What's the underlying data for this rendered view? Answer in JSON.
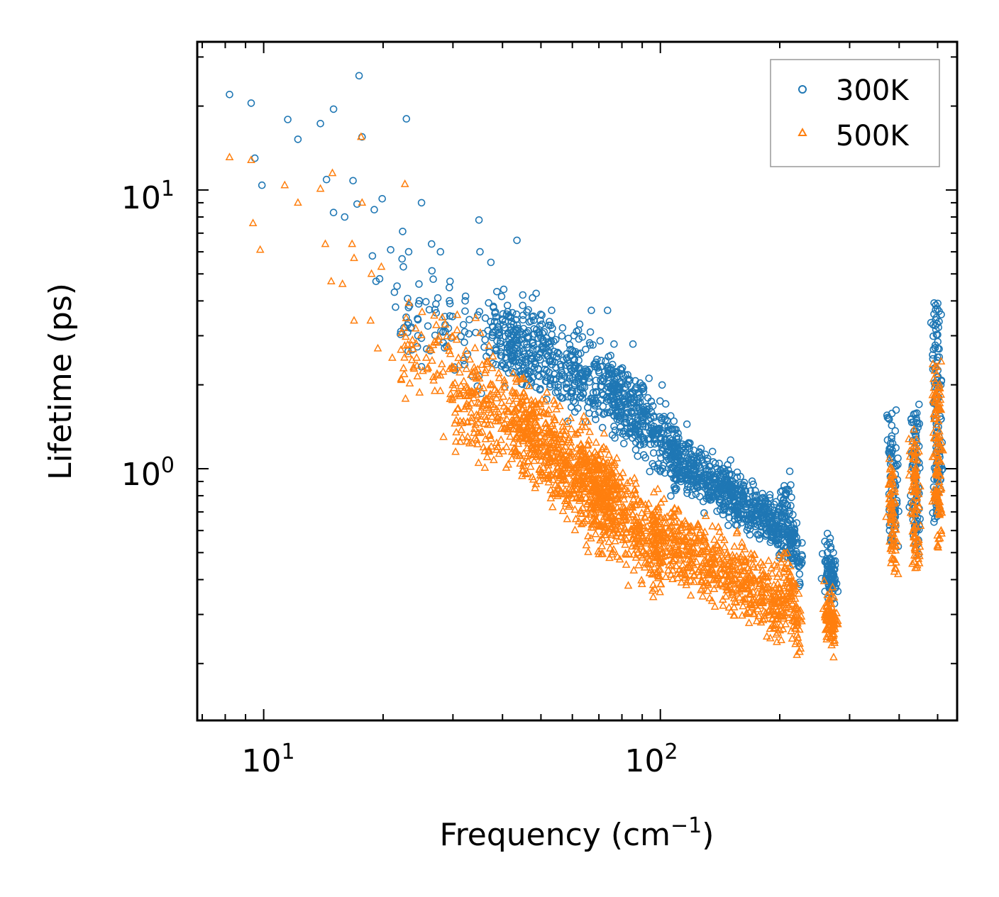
{
  "chart_data": {
    "type": "scatter",
    "title": "",
    "xlabel": "Frequency (cm",
    "xlabel_sup": "−1",
    "xlabel_suffix": ")",
    "ylabel": "Lifetime (ps)",
    "xscale": "log",
    "yscale": "log",
    "xlim": [
      6.8,
      560
    ],
    "ylim": [
      0.125,
      34
    ],
    "x_ticks": [
      {
        "base": "10",
        "exp": "1",
        "value": 10
      },
      {
        "base": "10",
        "exp": "2",
        "value": 100
      }
    ],
    "y_ticks": [
      {
        "base": "10",
        "exp": "0",
        "value": 1
      },
      {
        "base": "10",
        "exp": "1",
        "value": 10
      }
    ],
    "legend_position": "top-right",
    "series": [
      {
        "name": "300K",
        "color": "#1f77b4",
        "marker": "circle-open",
        "points": [
          [
            8.2,
            22.0
          ],
          [
            9.3,
            20.5
          ],
          [
            9.5,
            13.0
          ],
          [
            9.9,
            10.4
          ],
          [
            11.5,
            17.9
          ],
          [
            12.2,
            15.2
          ],
          [
            13.9,
            17.3
          ],
          [
            14.4,
            10.9
          ],
          [
            15.0,
            19.5
          ],
          [
            15.0,
            8.3
          ],
          [
            16.0,
            8.0
          ],
          [
            16.8,
            10.8
          ],
          [
            17.2,
            8.9
          ],
          [
            17.4,
            25.7
          ],
          [
            17.7,
            15.5
          ],
          [
            18.8,
            5.8
          ],
          [
            19.0,
            8.5
          ],
          [
            19.2,
            4.7
          ],
          [
            19.6,
            4.8
          ],
          [
            19.9,
            9.3
          ],
          [
            20.9,
            6.1
          ],
          [
            21.5,
            3.8
          ],
          [
            22.4,
            7.1
          ],
          [
            22.5,
            5.3
          ],
          [
            22.9,
            18.0
          ],
          [
            23.2,
            6.0
          ],
          [
            25.0,
            9.0
          ],
          [
            26.5,
            6.4
          ],
          [
            27.9,
            6.0
          ],
          [
            29.5,
            4.7
          ],
          [
            32.2,
            4.0
          ],
          [
            34.9,
            7.8
          ],
          [
            35.1,
            6.0
          ],
          [
            37.4,
            5.5
          ],
          [
            40.3,
            4.4
          ],
          [
            43.5,
            6.6
          ],
          [
            45.0,
            4.2
          ],
          [
            47.6,
            4.1
          ],
          [
            53.2,
            3.7
          ],
          [
            56.7,
            3.2
          ],
          [
            62.6,
            3.3
          ],
          [
            67.0,
            3.7
          ],
          [
            73.6,
            3.7
          ],
          [
            76.4,
            2.8
          ],
          [
            85.3,
            2.8
          ]
        ],
        "clusters": [
          {
            "x": [
              22,
              50
            ],
            "y": [
              3.6,
              2.6
            ],
            "n": 140,
            "spread": 1.22
          },
          {
            "x": [
              38,
              78
            ],
            "y": [
              3.0,
              1.85
            ],
            "n": 420,
            "spread": 1.18
          },
          {
            "x": [
              75,
              110
            ],
            "y": [
              1.9,
              1.15
            ],
            "n": 320,
            "spread": 1.16
          },
          {
            "x": [
              108,
              205
            ],
            "y": [
              1.1,
              0.6
            ],
            "n": 600,
            "spread": 1.12
          },
          {
            "x": [
              205,
              215
            ],
            "y": [
              0.85,
              0.48
            ],
            "n": 70,
            "spread": 1.1
          },
          {
            "x": [
              215,
              225
            ],
            "y": [
              0.62,
              0.42
            ],
            "n": 50,
            "spread": 1.1
          },
          {
            "x": [
              260,
              275
            ],
            "y": [
              0.48,
              0.4
            ],
            "n": 90,
            "spread": 1.12
          },
          {
            "x": [
              383,
              388
            ],
            "y": [
              1.6,
              0.55
            ],
            "n": 80,
            "spread": 1.08
          },
          {
            "x": [
              437,
              442
            ],
            "y": [
              1.7,
              0.55
            ],
            "n": 90,
            "spread": 1.08
          },
          {
            "x": [
              497,
              502
            ],
            "y": [
              3.8,
              0.7
            ],
            "n": 120,
            "spread": 1.08
          }
        ]
      },
      {
        "name": "500K",
        "color": "#ff7f0e",
        "marker": "triangle-open",
        "points": [
          [
            8.2,
            13.1
          ],
          [
            9.3,
            12.8
          ],
          [
            9.4,
            7.6
          ],
          [
            9.8,
            6.1
          ],
          [
            11.3,
            10.4
          ],
          [
            12.2,
            9.0
          ],
          [
            13.9,
            10.1
          ],
          [
            14.3,
            6.4
          ],
          [
            14.8,
            4.7
          ],
          [
            14.9,
            11.5
          ],
          [
            15.8,
            4.6
          ],
          [
            16.7,
            6.4
          ],
          [
            16.9,
            5.7
          ],
          [
            16.9,
            3.4
          ],
          [
            17.6,
            15.5
          ],
          [
            17.7,
            9.0
          ],
          [
            18.6,
            3.4
          ],
          [
            18.7,
            5.0
          ],
          [
            19.4,
            2.7
          ],
          [
            19.8,
            5.3
          ],
          [
            21.1,
            2.5
          ],
          [
            22.2,
            2.1
          ],
          [
            22.7,
            10.5
          ],
          [
            24.3,
            2.5
          ],
          [
            25.7,
            2.5
          ],
          [
            27.0,
            1.9
          ],
          [
            28.4,
            1.3
          ],
          [
            29.9,
            1.8
          ],
          [
            32.7,
            1.3
          ],
          [
            36.6,
            1.1
          ]
        ],
        "clusters": [
          {
            "x": [
              22,
              40
            ],
            "y": [
              2.9,
              1.9
            ],
            "n": 120,
            "spread": 1.22
          },
          {
            "x": [
              30,
              60
            ],
            "y": [
              1.8,
              1.1
            ],
            "n": 260,
            "spread": 1.22
          },
          {
            "x": [
              42,
              78
            ],
            "y": [
              1.6,
              0.65
            ],
            "n": 480,
            "spread": 1.22
          },
          {
            "x": [
              62,
              100
            ],
            "y": [
              1.1,
              0.5
            ],
            "n": 420,
            "spread": 1.2
          },
          {
            "x": [
              95,
              205
            ],
            "y": [
              0.6,
              0.32
            ],
            "n": 620,
            "spread": 1.16
          },
          {
            "x": [
              205,
              225
            ],
            "y": [
              0.45,
              0.26
            ],
            "n": 90,
            "spread": 1.14
          },
          {
            "x": [
              262,
              275
            ],
            "y": [
              0.32,
              0.26
            ],
            "n": 90,
            "spread": 1.12
          },
          {
            "x": [
              383,
              388
            ],
            "y": [
              1.0,
              0.45
            ],
            "n": 80,
            "spread": 1.08
          },
          {
            "x": [
              437,
              442
            ],
            "y": [
              1.3,
              0.45
            ],
            "n": 90,
            "spread": 1.08
          },
          {
            "x": [
              497,
              502
            ],
            "y": [
              2.3,
              0.55
            ],
            "n": 120,
            "spread": 1.08
          }
        ]
      }
    ]
  }
}
